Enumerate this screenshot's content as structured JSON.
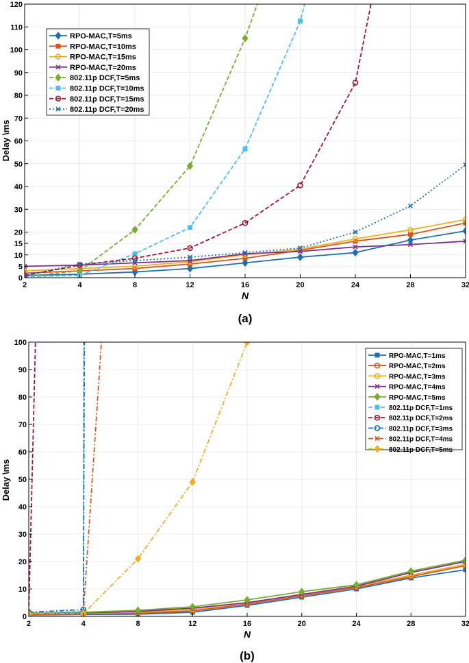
{
  "colors": {
    "blue": "#1f6fb5",
    "orange": "#d9541a",
    "yellow": "#edb021",
    "purple": "#7e2f8e",
    "green": "#77ac30",
    "lightblue": "#4dbeee",
    "darkred": "#a2142f",
    "axis": "#000000",
    "grid": "#dcdcdc"
  },
  "chart_data": [
    {
      "type": "line",
      "caption": "(a)",
      "xlabel": "N",
      "ylabel": "Delay \\ms",
      "x_ticks": [
        2,
        4,
        8,
        12,
        16,
        20,
        24,
        28,
        32
      ],
      "y_ticks": [
        0,
        5,
        10,
        15,
        20,
        30,
        40,
        50,
        60,
        70,
        80,
        90,
        100,
        110,
        120
      ],
      "xlim": [
        2,
        32
      ],
      "ylim": [
        0,
        120
      ],
      "legend_position": "top-left",
      "series": [
        {
          "name": "RPO-MAC,T=5ms",
          "color": "blue",
          "dash": "solid",
          "marker": "diamond",
          "x": [
            2,
            4,
            8,
            12,
            16,
            20,
            24,
            28,
            32
          ],
          "y": [
            1,
            1.5,
            2.5,
            4,
            6.5,
            9,
            11,
            16.5,
            20.5
          ]
        },
        {
          "name": "RPO-MAC,T=10ms",
          "color": "orange",
          "dash": "solid",
          "marker": "square",
          "x": [
            2,
            4,
            8,
            12,
            16,
            20,
            24,
            28,
            32
          ],
          "y": [
            2,
            3,
            4,
            6,
            8.5,
            12,
            16,
            19,
            24
          ]
        },
        {
          "name": "RPO-MAC,T=15ms",
          "color": "yellow",
          "dash": "solid",
          "marker": "circle",
          "x": [
            2,
            4,
            8,
            12,
            16,
            20,
            24,
            28,
            32
          ],
          "y": [
            3,
            4,
            5,
            7,
            10,
            12.5,
            17,
            21,
            25.5
          ]
        },
        {
          "name": "RPO-MAC,T=20ms",
          "color": "purple",
          "dash": "solid",
          "marker": "cross",
          "x": [
            2,
            4,
            8,
            12,
            16,
            20,
            24,
            28,
            32
          ],
          "y": [
            5,
            5.5,
            6.5,
            7.5,
            10.5,
            11.5,
            13.5,
            14.5,
            16
          ]
        },
        {
          "name": "802.11p DCF,T=5ms",
          "color": "green",
          "dash": "dash",
          "marker": "diamond",
          "x": [
            2,
            4,
            8,
            12,
            16,
            17
          ],
          "y": [
            0.5,
            3,
            21,
            49,
            105,
            122
          ]
        },
        {
          "name": "802.11p DCF,T=10ms",
          "color": "lightblue",
          "dash": "dash",
          "marker": "square",
          "x": [
            2,
            4,
            8,
            12,
            16,
            20,
            20.4
          ],
          "y": [
            0.5,
            1,
            10.5,
            22,
            56.5,
            112.5,
            122
          ]
        },
        {
          "name": "802.11p DCF,T=15ms",
          "color": "darkred",
          "dash": "dash",
          "marker": "circle",
          "x": [
            2,
            4,
            8,
            12,
            16,
            20,
            24,
            25.2
          ],
          "y": [
            1,
            5.5,
            8.5,
            13,
            24,
            40.5,
            85.5,
            122
          ]
        },
        {
          "name": "802.11p DCF,T=20ms",
          "color": "blue",
          "dash": "dot",
          "marker": "cross",
          "x": [
            2,
            4,
            8,
            12,
            16,
            20,
            24,
            28,
            32
          ],
          "y": [
            1,
            6,
            7.5,
            9,
            11,
            13,
            20,
            31.5,
            49.5
          ]
        }
      ]
    },
    {
      "type": "line",
      "caption": "(b)",
      "xlabel": "N",
      "ylabel": "Delay \\ms",
      "x_ticks": [
        2,
        4,
        8,
        12,
        16,
        20,
        24,
        28,
        32
      ],
      "y_ticks": [
        0,
        10,
        20,
        30,
        40,
        50,
        60,
        70,
        80,
        90,
        100
      ],
      "xlim": [
        2,
        32
      ],
      "ylim": [
        0,
        100
      ],
      "legend_position": "top-right",
      "series": [
        {
          "name": "RPO-MAC,T=1ms",
          "color": "blue",
          "dash": "solid",
          "marker": "square",
          "x": [
            2,
            4,
            8,
            12,
            16,
            20,
            24,
            28,
            32
          ],
          "y": [
            0.5,
            0.7,
            0.8,
            1.5,
            4,
            7,
            10,
            14,
            17
          ]
        },
        {
          "name": "RPO-MAC,T=2ms",
          "color": "orange",
          "dash": "solid",
          "marker": "circle",
          "x": [
            2,
            4,
            8,
            12,
            16,
            20,
            24,
            28,
            32
          ],
          "y": [
            0.7,
            0.9,
            1.2,
            2,
            4.5,
            7.5,
            10.5,
            14.5,
            18.5
          ]
        },
        {
          "name": "RPO-MAC,T=3ms",
          "color": "yellow",
          "dash": "solid",
          "marker": "circle",
          "x": [
            2,
            4,
            8,
            12,
            16,
            20,
            24,
            28,
            32
          ],
          "y": [
            0.9,
            1.1,
            1.5,
            2.5,
            5,
            8,
            11,
            15,
            19
          ]
        },
        {
          "name": "RPO-MAC,T=4ms",
          "color": "purple",
          "dash": "solid",
          "marker": "cross",
          "x": [
            2,
            4,
            8,
            12,
            16,
            20,
            24,
            28,
            32
          ],
          "y": [
            1,
            1.3,
            1.8,
            3,
            5,
            8,
            11,
            16,
            20
          ]
        },
        {
          "name": "RPO-MAC,T=5ms",
          "color": "green",
          "dash": "solid",
          "marker": "diamond",
          "x": [
            2,
            4,
            8,
            12,
            16,
            20,
            24,
            28,
            32
          ],
          "y": [
            1.2,
            1.5,
            2.2,
            3.5,
            6,
            9,
            11.5,
            16.5,
            20.5
          ]
        },
        {
          "name": "802.11p DCF,T=1ms",
          "color": "lightblue",
          "dash": "dash",
          "marker": "square",
          "x": [
            2,
            4,
            4.04
          ],
          "y": [
            1.2,
            1.8,
            102
          ]
        },
        {
          "name": "802.11p DCF,T=2ms",
          "color": "darkred",
          "dash": "dash",
          "marker": "circle",
          "x": [
            2,
            2.25
          ],
          "y": [
            1.5,
            102
          ]
        },
        {
          "name": "802.11p DCF,T=3ms",
          "color": "blue",
          "dash": "dashdot",
          "marker": "circle",
          "x": [
            2,
            4,
            4.08
          ],
          "y": [
            1.5,
            2.5,
            102
          ]
        },
        {
          "name": "802.11p DCF,T=4ms",
          "color": "orange",
          "dash": "dashdot",
          "marker": "cross",
          "x": [
            2,
            4,
            5.35
          ],
          "y": [
            1,
            1.2,
            102
          ]
        },
        {
          "name": "802.11p DCF,T=5ms",
          "color": "yellow",
          "dash": "dashdot",
          "marker": "diamond",
          "x": [
            2,
            4,
            8,
            12,
            16,
            16.1
          ],
          "y": [
            1,
            1,
            21,
            49,
            100,
            102
          ]
        }
      ]
    }
  ]
}
